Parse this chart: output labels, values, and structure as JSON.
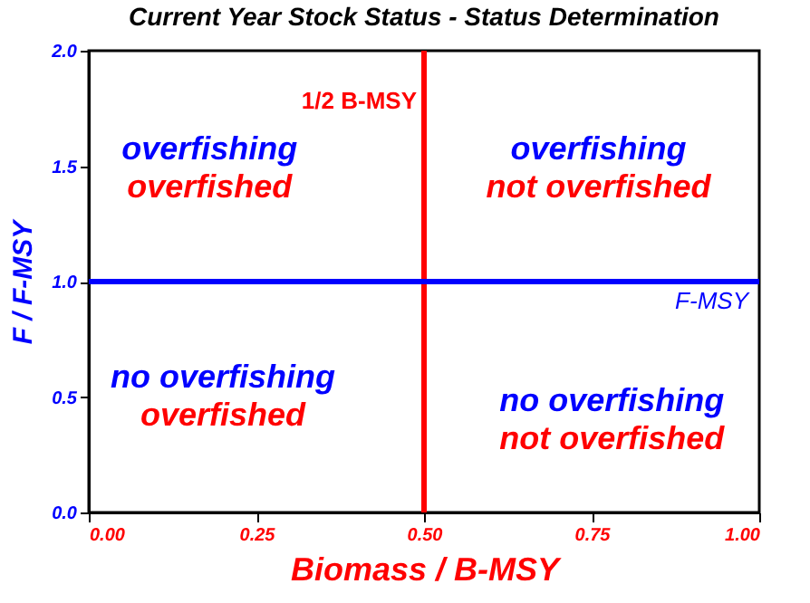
{
  "chart_data": {
    "type": "scatter",
    "title": "Current Year Stock Status - Status Determination",
    "xlabel": "Biomass / B-MSY",
    "ylabel": "F  / F-MSY",
    "xlim": [
      0,
      1
    ],
    "ylim": [
      0,
      2
    ],
    "xticks": [
      {
        "value": 0,
        "label": "0.00"
      },
      {
        "value": 0.25,
        "label": "0.25"
      },
      {
        "value": 0.5,
        "label": "0.50"
      },
      {
        "value": 0.75,
        "label": "0.75"
      },
      {
        "value": 1,
        "label": "1.00"
      }
    ],
    "yticks": [
      {
        "value": 0,
        "label": "0.0"
      },
      {
        "value": 0.5,
        "label": "0.5"
      },
      {
        "value": 1,
        "label": "1.0"
      },
      {
        "value": 1.5,
        "label": "1.5"
      },
      {
        "value": 2,
        "label": "2.0"
      }
    ],
    "ref_lines": [
      {
        "axis": "x",
        "value": 0.5,
        "label": "1/2  B-MSY",
        "color": "#ff0000"
      },
      {
        "axis": "y",
        "value": 1.0,
        "label": "F-MSY",
        "color": "#0000ff"
      }
    ],
    "annotations": [
      "overfishing",
      "overfished",
      "overfishing",
      "not overfished",
      "no overfishing",
      "overfished",
      "no overfishing",
      "not overfished"
    ]
  }
}
